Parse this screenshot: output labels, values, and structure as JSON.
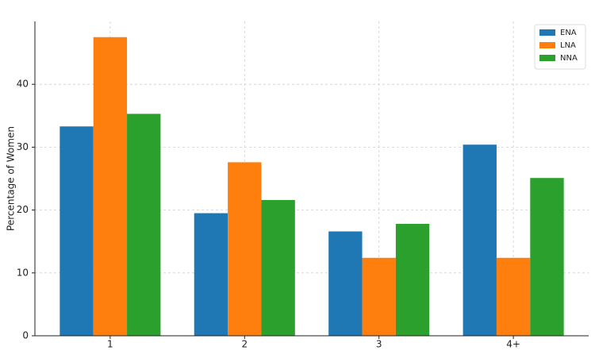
{
  "chart_data": {
    "type": "bar",
    "y_label": "Percentage of Women",
    "categories": [
      "1",
      "2",
      "3",
      "4+"
    ],
    "series": [
      {
        "name": "ENA",
        "color": "#1f77b4",
        "values": [
          33.3,
          19.5,
          16.6,
          30.4
        ]
      },
      {
        "name": "LNA",
        "color": "#ff7f0e",
        "values": [
          47.5,
          27.6,
          12.4,
          12.4
        ]
      },
      {
        "name": "NNA",
        "color": "#2ca02c",
        "values": [
          35.3,
          21.6,
          17.8,
          25.1
        ]
      }
    ],
    "ylim": [
      0,
      50
    ],
    "yticks": [
      0,
      10,
      20,
      30,
      40
    ],
    "grid": true,
    "legend": "upper right"
  }
}
